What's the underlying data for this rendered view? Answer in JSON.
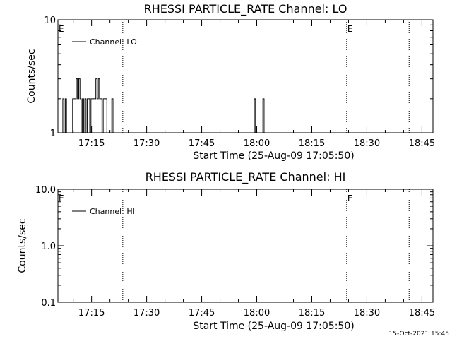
{
  "chart_data": [
    {
      "type": "line",
      "title": "RHESSI PARTICLE_RATE Channel: LO",
      "xlabel": "Start Time (25-Aug-09 17:05:50)",
      "ylabel": "Counts/sec",
      "yscale": "log",
      "ylim": [
        1,
        10
      ],
      "ytick_labels": [
        "1",
        "10"
      ],
      "xlim": [
        "17:05:50",
        "18:48:00"
      ],
      "xtick_labels": [
        "17:15",
        "17:30",
        "17:45",
        "18:00",
        "18:15",
        "18:30",
        "18:45"
      ],
      "legend": {
        "position": "top-left",
        "entries": [
          "Channel: LO"
        ]
      },
      "event_lines": [
        "17:23:30",
        "18:24:30",
        "18:41:30"
      ],
      "event_markers": [
        {
          "label": "E",
          "at": "17:05:50"
        },
        {
          "label": "E",
          "at": "18:24:30"
        }
      ],
      "series": [
        {
          "name": "Channel: LO",
          "x": [
            "17:05:50",
            "17:06:50",
            "17:07:10",
            "17:07:30",
            "17:07:50",
            "17:08:10",
            "17:08:30",
            "17:08:50",
            "17:09:10",
            "17:09:30",
            "17:09:50",
            "17:10:10",
            "17:10:30",
            "17:10:50",
            "17:11:10",
            "17:11:30",
            "17:11:50",
            "17:12:10",
            "17:12:30",
            "17:12:50",
            "17:13:10",
            "17:13:30",
            "17:13:50",
            "17:14:10",
            "17:14:30",
            "17:14:50",
            "17:15:10",
            "17:15:30",
            "17:15:50",
            "17:16:10",
            "17:16:30",
            "17:16:50",
            "17:17:10",
            "17:17:30",
            "17:17:50",
            "17:18:10",
            "17:18:30",
            "17:18:50",
            "17:19:10",
            "17:19:30",
            "17:19:50",
            "17:20:10",
            "17:20:30",
            "17:20:50",
            "17:21:10",
            "17:21:30",
            "17:59:00",
            "17:59:20",
            "17:59:40",
            "18:00:00",
            "18:00:20",
            "18:00:40",
            "18:01:00",
            "18:01:20",
            "18:01:40",
            "18:02:00",
            "18:02:20"
          ],
          "values": [
            1,
            1,
            2,
            1,
            2,
            1,
            1,
            1,
            1,
            1,
            2,
            2,
            2,
            3,
            2,
            3,
            2,
            1,
            2,
            1,
            2,
            1,
            2,
            2,
            1,
            2,
            2,
            2,
            2,
            3,
            2,
            3,
            2,
            2,
            1,
            2,
            2,
            2,
            1,
            1,
            1,
            1,
            2,
            1,
            1,
            1,
            1,
            2,
            1,
            1,
            1,
            1,
            1,
            1,
            2,
            1,
            1
          ]
        }
      ]
    },
    {
      "type": "line",
      "title": "RHESSI PARTICLE_RATE Channel: HI",
      "xlabel": "Start Time (25-Aug-09 17:05:50)",
      "ylabel": "Counts/sec",
      "yscale": "log",
      "ylim": [
        0.1,
        10
      ],
      "ytick_labels": [
        "0.1",
        "1.0",
        "10.0"
      ],
      "xlim": [
        "17:05:50",
        "18:48:00"
      ],
      "xtick_labels": [
        "17:15",
        "17:30",
        "17:45",
        "18:00",
        "18:15",
        "18:30",
        "18:45"
      ],
      "legend": {
        "position": "top-left",
        "entries": [
          "Channel: HI"
        ]
      },
      "event_lines": [
        "17:23:30",
        "18:24:30",
        "18:41:30"
      ],
      "event_markers": [
        {
          "label": "E",
          "at": "17:05:50"
        },
        {
          "label": "E",
          "at": "18:24:30"
        }
      ],
      "series": [
        {
          "name": "Channel: HI",
          "x": [],
          "values": []
        }
      ]
    }
  ],
  "footer": {
    "timestamp": "15-Oct-2021 15:45"
  }
}
